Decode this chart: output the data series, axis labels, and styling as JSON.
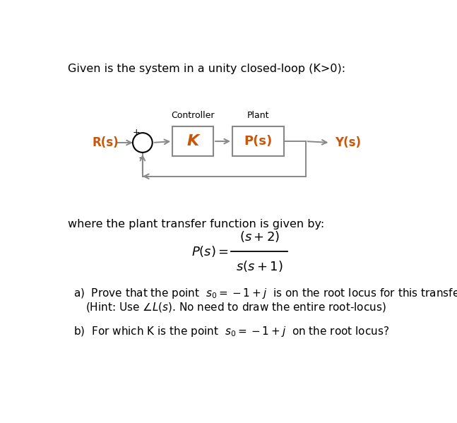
{
  "bg_color": "#ffffff",
  "title_text": "Given is the system in a unity closed-loop (K>0):",
  "title_fontsize": 11.5,
  "controller_label": "Controller",
  "plant_label": "Plant",
  "K_label": "K",
  "Ps_box_label": "P(s)",
  "Rs_label": "R(s)",
  "Ys_label": "Y(s)",
  "plus_label": "+",
  "minus_label": "-",
  "where_text": "where the plant transfer function is given by:",
  "where_fontsize": 11.5,
  "text_color": "#000000",
  "orange_color": "#c8570a",
  "box_edge_color": "#888888",
  "arrow_color": "#888888",
  "circle_color": "#000000",
  "K_color": "#c8570a",
  "Ps_color": "#c8570a",
  "Rs_color": "#c8570a",
  "Ys_color": "#c8570a"
}
